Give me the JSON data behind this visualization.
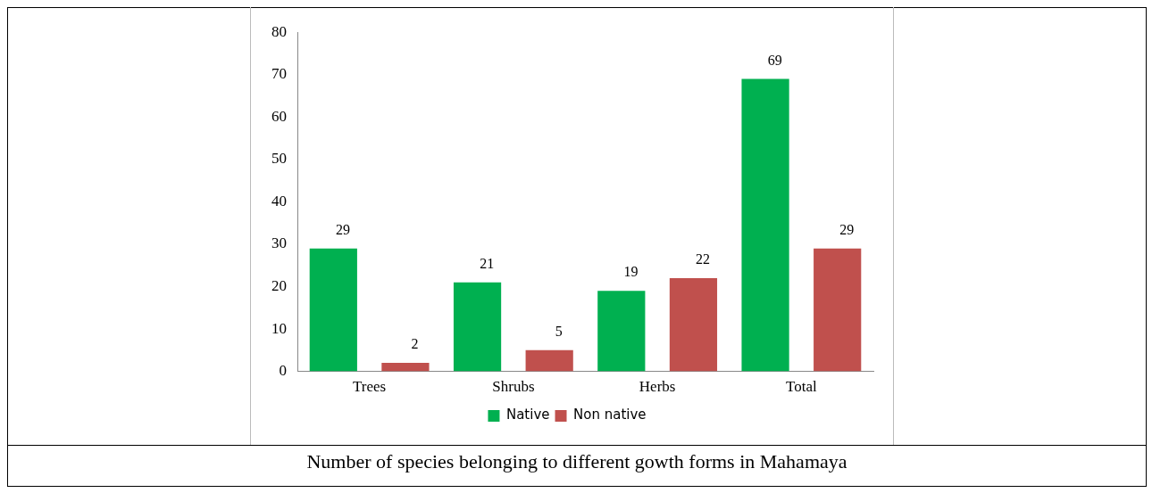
{
  "chart_data": {
    "type": "bar",
    "categories": [
      "Trees",
      "Shrubs",
      "Herbs",
      "Total"
    ],
    "series": [
      {
        "name": "Native",
        "color": "#00b050",
        "values": [
          29,
          21,
          19,
          69
        ]
      },
      {
        "name": "Non native",
        "color": "#c0504d",
        "values": [
          2,
          5,
          22,
          29
        ]
      }
    ],
    "ylim": [
      0,
      80
    ],
    "yticks": [
      0,
      10,
      20,
      30,
      40,
      50,
      60,
      70,
      80
    ],
    "grid": false,
    "legend": "bottom",
    "data_labels": true,
    "annotations": [
      "Number of species belonging to different gowth forms in Mahamaya"
    ]
  }
}
